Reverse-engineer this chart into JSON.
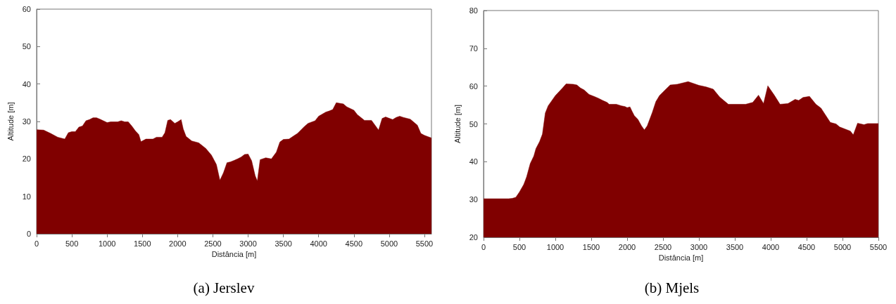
{
  "chart_data": [
    {
      "type": "area",
      "title": "(a) Jerslev",
      "xlabel": "Distância [m]",
      "ylabel": "Altitude [m]",
      "color": "#800000",
      "xlim": [
        0,
        5600
      ],
      "xticks": [
        0,
        500,
        1000,
        1500,
        2000,
        2500,
        3000,
        3500,
        4000,
        4500,
        5000,
        5500
      ],
      "ylim": [
        0,
        60
      ],
      "yticks": [
        0,
        10,
        20,
        30,
        40,
        50,
        60
      ],
      "x": [
        0,
        100,
        200,
        300,
        400,
        450,
        500,
        550,
        600,
        650,
        700,
        750,
        800,
        850,
        900,
        1000,
        1050,
        1150,
        1200,
        1250,
        1300,
        1350,
        1400,
        1450,
        1480,
        1550,
        1650,
        1700,
        1780,
        1820,
        1860,
        1900,
        1960,
        2000,
        2050,
        2080,
        2120,
        2200,
        2300,
        2400,
        2480,
        2550,
        2600,
        2650,
        2700,
        2750,
        2800,
        2850,
        2900,
        2950,
        3000,
        3050,
        3100,
        3130,
        3170,
        3250,
        3330,
        3400,
        3450,
        3500,
        3580,
        3650,
        3700,
        3800,
        3850,
        3950,
        4000,
        4100,
        4150,
        4200,
        4250,
        4350,
        4400,
        4500,
        4550,
        4650,
        4750,
        4850,
        4900,
        4950,
        5050,
        5100,
        5150,
        5200,
        5300,
        5400,
        5450,
        5500,
        5600
      ],
      "values": [
        27.8,
        27.7,
        26.8,
        25.8,
        25.3,
        27,
        27.3,
        27.3,
        28.5,
        28.8,
        30.2,
        30.5,
        31,
        31,
        30.6,
        29.7,
        29.9,
        29.9,
        30.2,
        29.9,
        29.9,
        28.8,
        27.5,
        26.5,
        24.6,
        25.3,
        25.3,
        25.8,
        25.8,
        27,
        30.3,
        30.5,
        29.5,
        29.9,
        30.5,
        28,
        26,
        24.8,
        24.3,
        22.8,
        21,
        18.5,
        14.3,
        16.3,
        19,
        19.2,
        19.6,
        20,
        20.5,
        21.2,
        21.3,
        19.5,
        15.5,
        14.1,
        19.8,
        20.3,
        20,
        21.8,
        24.5,
        25.2,
        25.3,
        26.2,
        26.8,
        28.7,
        29.5,
        30.2,
        31.4,
        32.5,
        32.8,
        33.2,
        35,
        34.7,
        33.9,
        33,
        31.8,
        30.3,
        30.3,
        27.7,
        30.8,
        31.2,
        30.5,
        31.1,
        31.4,
        31.1,
        30.6,
        29,
        26.8,
        26.3,
        25.6
      ]
    },
    {
      "type": "area",
      "title": "(b) Mjels",
      "xlabel": "Distância [m]",
      "ylabel": "Altitude [m]",
      "color": "#800000",
      "xlim": [
        0,
        5500
      ],
      "xticks": [
        0,
        500,
        1000,
        1500,
        2000,
        2500,
        3000,
        3500,
        4000,
        4500,
        5000,
        5500
      ],
      "ylim": [
        20,
        80
      ],
      "yticks": [
        20,
        30,
        40,
        50,
        60,
        70,
        80
      ],
      "x": [
        0,
        350,
        400,
        450,
        500,
        560,
        600,
        650,
        700,
        730,
        780,
        820,
        860,
        900,
        1000,
        1100,
        1150,
        1250,
        1300,
        1350,
        1400,
        1470,
        1550,
        1600,
        1660,
        1720,
        1750,
        1850,
        1920,
        1970,
        2000,
        2040,
        2070,
        2100,
        2150,
        2200,
        2240,
        2280,
        2350,
        2400,
        2450,
        2530,
        2600,
        2700,
        2850,
        3000,
        3100,
        3200,
        3290,
        3410,
        3650,
        3750,
        3830,
        3900,
        3960,
        4050,
        4130,
        4240,
        4340,
        4390,
        4450,
        4540,
        4630,
        4700,
        4830,
        4910,
        4960,
        5110,
        5150,
        5210,
        5300,
        5350,
        5500
      ],
      "values": [
        30.2,
        30.2,
        30.3,
        30.6,
        32,
        34,
        36,
        39.5,
        41.5,
        43.5,
        45.3,
        47.3,
        52.9,
        54.8,
        57.5,
        59.5,
        60.6,
        60.5,
        60.3,
        59.5,
        59,
        57.8,
        57.2,
        56.8,
        56.2,
        55.7,
        55.2,
        55.2,
        54.8,
        54.6,
        54.3,
        54.5,
        53.3,
        52.2,
        51.2,
        49.5,
        48.4,
        49.5,
        53,
        55.9,
        57.5,
        59,
        60.3,
        60.5,
        61.2,
        60.2,
        59.8,
        59.2,
        57.1,
        55.2,
        55.2,
        55.7,
        57.6,
        55.4,
        60.1,
        57.6,
        55.2,
        55.4,
        56.5,
        56.2,
        57,
        57.3,
        55.2,
        54.2,
        50.4,
        50,
        49.2,
        48.1,
        47.1,
        50.2,
        49.8,
        50.1,
        50.1
      ]
    }
  ]
}
